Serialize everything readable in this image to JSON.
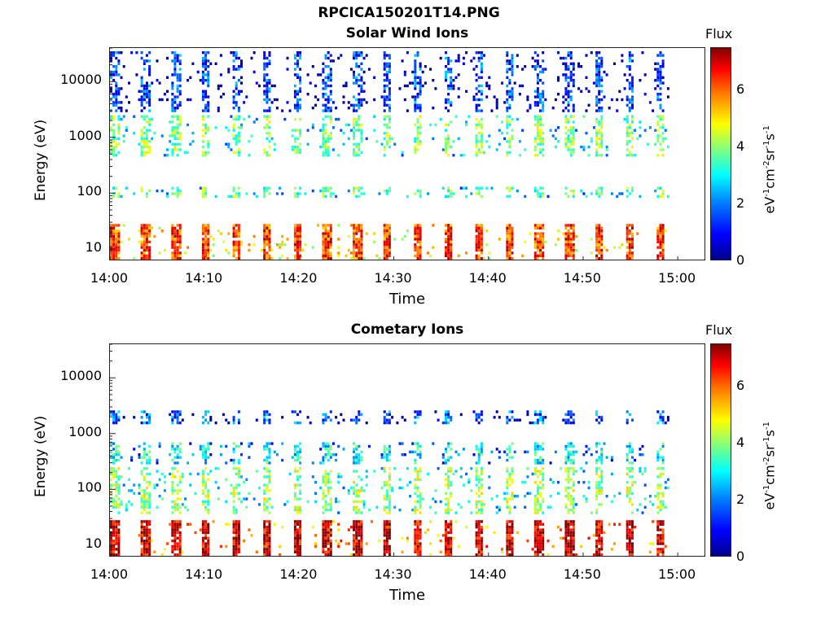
{
  "figure_title": "RPCICA150201T14.PNG",
  "colorbar": {
    "title": "Flux",
    "ticks": [
      "0",
      "2",
      "4",
      "6"
    ],
    "label_parts": [
      "eV",
      "-1",
      "cm",
      "-2",
      "sr",
      "-1",
      "s",
      "-1"
    ]
  },
  "colors": {
    "colormap": [
      "#00008f",
      "#0000ff",
      "#0080ff",
      "#00ffff",
      "#80ff80",
      "#ffff00",
      "#ff8000",
      "#ff0000",
      "#800000"
    ]
  },
  "chart_data": [
    {
      "type": "heatmap",
      "title": "Solar Wind Ions",
      "xlabel": "Time",
      "ylabel": "Energy (eV)",
      "x_ticks": [
        "14:00",
        "14:10",
        "14:20",
        "14:30",
        "14:40",
        "14:50",
        "15:00"
      ],
      "y_ticks": [
        "10",
        "100",
        "1000",
        "10000"
      ],
      "y_scale": "log",
      "ylim": [
        6,
        40000
      ],
      "xlim": [
        "14:00",
        "15:03"
      ],
      "color_range": [
        0,
        7.5
      ],
      "sweep_period_minutes": 3.2,
      "bands": [
        {
          "energy": [
            6,
            28
          ],
          "level": 5.5
        },
        {
          "energy": [
            90,
            130
          ],
          "level": 3.0
        },
        {
          "energy": [
            500,
            2500
          ],
          "level": 3.2
        },
        {
          "energy": [
            3000,
            35000
          ],
          "level": 0.8
        }
      ]
    },
    {
      "type": "heatmap",
      "title": "Cometary Ions",
      "xlabel": "Time",
      "ylabel": "Energy (eV)",
      "x_ticks": [
        "14:00",
        "14:10",
        "14:20",
        "14:30",
        "14:40",
        "14:50",
        "15:00"
      ],
      "y_ticks": [
        "10",
        "100",
        "1000",
        "10000"
      ],
      "y_scale": "log",
      "ylim": [
        6,
        40000
      ],
      "xlim": [
        "14:00",
        "15:03"
      ],
      "color_range": [
        0,
        7.5
      ],
      "sweep_period_minutes": 3.2,
      "bands": [
        {
          "energy": [
            6,
            28
          ],
          "level": 6.3
        },
        {
          "energy": [
            40,
            250
          ],
          "level": 3.4
        },
        {
          "energy": [
            300,
            700
          ],
          "level": 2.2
        },
        {
          "energy": [
            1600,
            2600
          ],
          "level": 1.0
        }
      ]
    }
  ]
}
